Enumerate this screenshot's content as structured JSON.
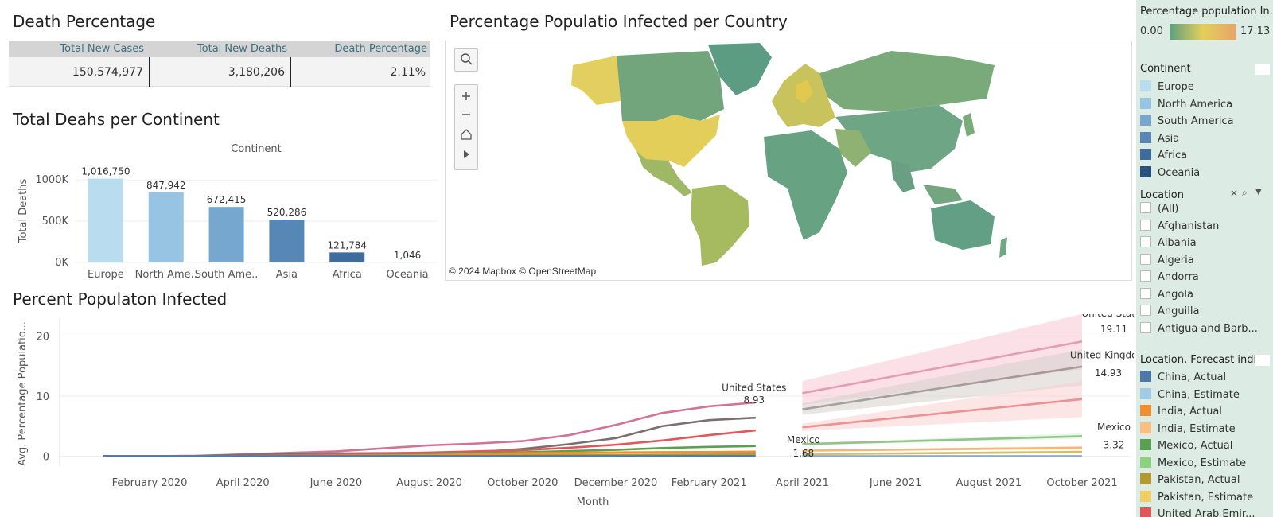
{
  "kpi": {
    "title": "Death Percentage",
    "headers": [
      "Total New Cases",
      "Total New Deaths",
      "Death Percentage"
    ],
    "values": [
      "150,574,977",
      "3,180,206",
      "2.11%"
    ]
  },
  "map": {
    "title": "Percentage Populatio Infected per Country",
    "attribution": "© 2024 Mapbox  © OpenStreetMap",
    "tools": [
      "search-icon",
      "zoom-in-icon",
      "zoom-out-icon",
      "home-icon",
      "play-icon"
    ],
    "colors": {
      "low": "#5e9e82",
      "mid": "#e4cf5a",
      "high": "#e7a46a"
    }
  },
  "bar_title": "Total Deahs per Continent",
  "line_title": "Percent Populaton Infected",
  "sidebar": {
    "color_legend_title": "Percentage population In...",
    "color_min": "0.00",
    "color_max": "17.13",
    "continent_title": "Continent",
    "continents": [
      {
        "label": "Europe",
        "color": "#b9dcef"
      },
      {
        "label": "North America",
        "color": "#97c4e3"
      },
      {
        "label": "South America",
        "color": "#76a7cf"
      },
      {
        "label": "Asia",
        "color": "#5787b4"
      },
      {
        "label": "Africa",
        "color": "#3e6c9c"
      },
      {
        "label": "Oceania",
        "color": "#26507d"
      }
    ],
    "location_title": "Location",
    "locations": [
      "(All)",
      "Afghanistan",
      "Albania",
      "Algeria",
      "Andorra",
      "Angola",
      "Anguilla",
      "Antigua and Barb..."
    ],
    "forecast_title": "Location, Forecast indica",
    "forecast_items": [
      {
        "label": "China, Actual",
        "color": "#4e79a7"
      },
      {
        "label": "China, Estimate",
        "color": "#a0cbe8"
      },
      {
        "label": "India, Actual",
        "color": "#f28e2b"
      },
      {
        "label": "India, Estimate",
        "color": "#ffbe7d"
      },
      {
        "label": "Mexico, Actual",
        "color": "#59a14f"
      },
      {
        "label": "Mexico, Estimate",
        "color": "#8cd17d"
      },
      {
        "label": "Pakistan, Actual",
        "color": "#b6992d"
      },
      {
        "label": "Pakistan, Estimate",
        "color": "#f1ce63"
      },
      {
        "label": "United Arab Emir...",
        "color": "#e15759"
      }
    ]
  },
  "chart_data": [
    {
      "type": "bar",
      "title": "Total Deahs per Continent",
      "header": "Continent",
      "ylabel": "Total Deaths",
      "categories": [
        "Europe",
        "North Ame..",
        "South Ame..",
        "Asia",
        "Africa",
        "Oceania"
      ],
      "values": [
        1016750,
        847942,
        672415,
        520286,
        121784,
        1046
      ],
      "value_labels": [
        "1,016,750",
        "847,942",
        "672,415",
        "520,286",
        "121,784",
        "1,046"
      ],
      "colors": [
        "#b9dcef",
        "#97c4e3",
        "#76a7cf",
        "#5787b4",
        "#3e6c9c",
        "#26507d"
      ],
      "yticks": [
        {
          "v": 0,
          "label": "0K"
        },
        {
          "v": 500000,
          "label": "500K"
        },
        {
          "v": 1000000,
          "label": "1000K"
        }
      ],
      "ylim": [
        0,
        1060000
      ]
    },
    {
      "type": "line",
      "title": "Percent Populaton Infected",
      "xlabel": "Month",
      "ylabel": "Avg. Percentage Populatio...",
      "ylim": [
        -1,
        23
      ],
      "yticks": [
        0,
        10,
        20
      ],
      "xticks": [
        {
          "t": "2020-02",
          "label": "February 2020"
        },
        {
          "t": "2020-04",
          "label": "April 2020"
        },
        {
          "t": "2020-06",
          "label": "June 2020"
        },
        {
          "t": "2020-08",
          "label": "August 2020"
        },
        {
          "t": "2020-10",
          "label": "October 2020"
        },
        {
          "t": "2020-12",
          "label": "December 2020"
        },
        {
          "t": "2021-02",
          "label": "February 2021"
        },
        {
          "t": "2021-04",
          "label": "April 2021"
        },
        {
          "t": "2021-06",
          "label": "June 2021"
        },
        {
          "t": "2021-08",
          "label": "August 2021"
        },
        {
          "t": "2021-10",
          "label": "October 2021"
        }
      ],
      "actual_x": [
        "2020-01",
        "2020-02",
        "2020-03",
        "2020-04",
        "2020-05",
        "2020-06",
        "2020-07",
        "2020-08",
        "2020-09",
        "2020-10",
        "2020-11",
        "2020-12",
        "2021-01",
        "2021-02",
        "2021-03"
      ],
      "estimate_x": [
        "2021-04",
        "2021-10"
      ],
      "series": [
        {
          "name": "United States",
          "color": "#d37295",
          "actual": [
            0,
            0,
            0.06,
            0.3,
            0.55,
            0.8,
            1.3,
            1.8,
            2.1,
            2.5,
            3.5,
            5.2,
            7.2,
            8.3,
            8.93
          ],
          "estimate": [
            10.5,
            19.11
          ],
          "band": [
            [
              8.5,
              12.5
            ],
            [
              14.5,
              23.7
            ]
          ],
          "band_color": "#f7c7d6"
        },
        {
          "name": "United Kingdom",
          "color": "#79706e",
          "actual": [
            0,
            0,
            0.03,
            0.22,
            0.4,
            0.45,
            0.5,
            0.55,
            0.65,
            1.2,
            2.0,
            3.0,
            5.0,
            6.0,
            6.4
          ],
          "estimate": [
            7.8,
            14.93
          ],
          "band": [
            [
              6.9,
              8.8
            ],
            [
              11.8,
              17.8
            ]
          ],
          "band_color": "#d6cfcc"
        },
        {
          "name": "United Arab Emirates",
          "color": "#e15759",
          "actual": [
            0,
            0,
            0,
            0.05,
            0.15,
            0.3,
            0.45,
            0.6,
            0.8,
            1.0,
            1.4,
            1.9,
            2.6,
            3.5,
            4.3
          ],
          "estimate": [
            4.8,
            9.5
          ],
          "band": [
            [
              4.2,
              5.4
            ],
            [
              6.5,
              12.5
            ]
          ],
          "band_color": "#f9cfcf"
        },
        {
          "name": "Mexico",
          "color": "#59a14f",
          "actual": [
            0,
            0,
            0,
            0.01,
            0.05,
            0.1,
            0.2,
            0.35,
            0.5,
            0.65,
            0.85,
            1.05,
            1.35,
            1.55,
            1.68
          ],
          "estimate": [
            2.0,
            3.32
          ],
          "band": [
            [
              1.8,
              2.2
            ],
            [
              2.9,
              3.8
            ]
          ],
          "band_color": "#d8efd3"
        },
        {
          "name": "Pakistan",
          "color": "#b6992d",
          "actual": [
            0,
            0,
            0,
            0.01,
            0.05,
            0.1,
            0.13,
            0.14,
            0.15,
            0.17,
            0.2,
            0.22,
            0.25,
            0.27,
            0.28
          ],
          "estimate": [
            0.32,
            0.7
          ],
          "band": [
            [
              0.25,
              0.4
            ],
            [
              0.45,
              0.95
            ]
          ],
          "band_color": "#f6e8b6"
        },
        {
          "name": "India",
          "color": "#f28e2b",
          "actual": [
            0,
            0,
            0,
            0,
            0.01,
            0.03,
            0.08,
            0.2,
            0.35,
            0.48,
            0.55,
            0.62,
            0.66,
            0.69,
            0.75
          ],
          "estimate": [
            0.9,
            1.4
          ],
          "band": [
            [
              0.8,
              1.0
            ],
            [
              1.1,
              1.7
            ]
          ],
          "band_color": "#fde0c2"
        },
        {
          "name": "China",
          "color": "#4e79a7",
          "actual": [
            0,
            0.005,
            0.006,
            0.006,
            0.006,
            0.006,
            0.006,
            0.006,
            0.006,
            0.006,
            0.006,
            0.006,
            0.007,
            0.007,
            0.007
          ],
          "estimate": [
            0.01,
            0.01
          ],
          "band": [
            [
              0,
              0.02
            ],
            [
              0,
              0.02
            ]
          ],
          "band_color": "#d0e3f2"
        }
      ],
      "annotations": [
        {
          "name": "United States",
          "value": "8.93"
        },
        {
          "name": "Mexico",
          "value": "1.68"
        },
        {
          "name": "United States",
          "value": "19.11"
        },
        {
          "name": "United Kingdom",
          "value": "14.93"
        },
        {
          "name": "Mexico",
          "value": "3.32"
        }
      ]
    }
  ]
}
